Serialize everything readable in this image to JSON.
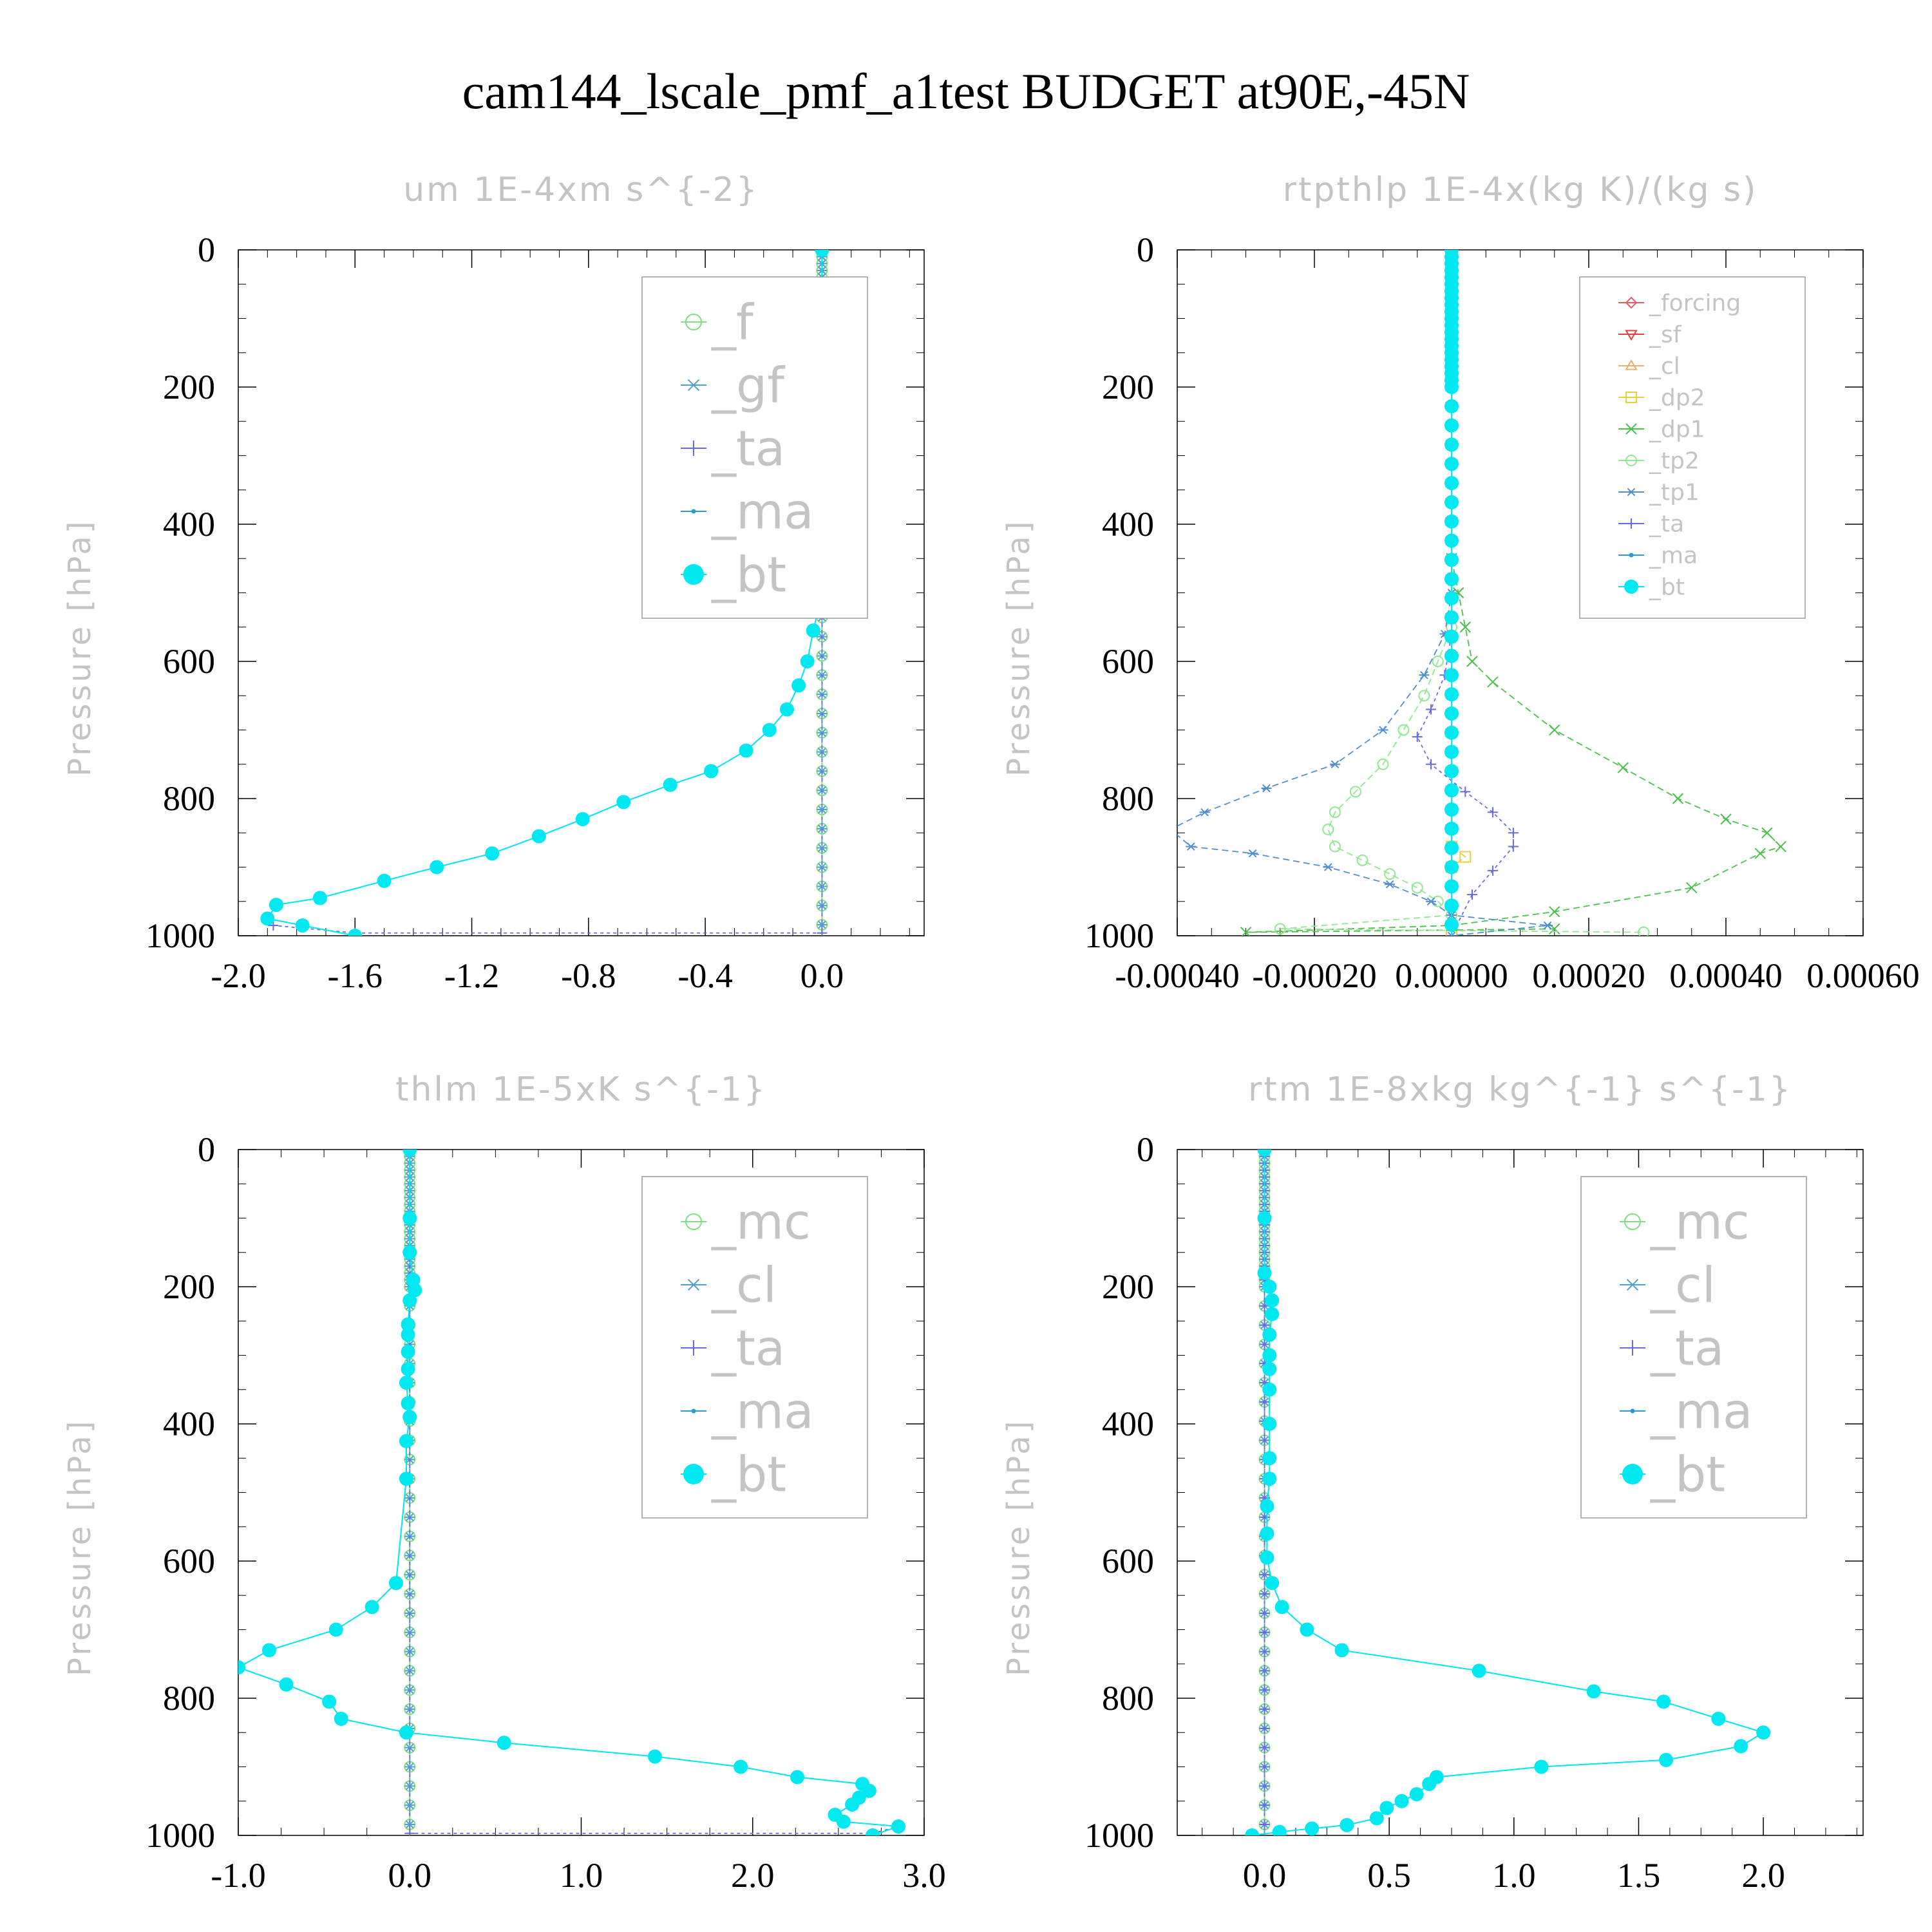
{
  "title": "cam144_lscale_pmf_a1test  BUDGET at90E,-45N",
  "chart_data": [
    {
      "type": "line",
      "title": "um  1E-4xm s^{-2}",
      "ylabel": "Pressure [hPa]",
      "xlim": [
        -2.0,
        0.35
      ],
      "ylim": [
        1000,
        0
      ],
      "xticks": [
        -2.0,
        -1.6,
        -1.2,
        -0.8,
        -0.4,
        0.0
      ],
      "xticklabels": [
        "-2.0",
        "-1.6",
        "-1.2",
        "-0.8",
        "-0.4",
        "0.0"
      ],
      "yticks": [
        0,
        200,
        400,
        600,
        800,
        1000
      ],
      "yticklabels": [
        "0",
        "200",
        "400",
        "600",
        "800",
        "1000"
      ],
      "legend_position": "top-right",
      "legend_size": "large",
      "series": [
        {
          "name": "_f",
          "color": "#7fe07f",
          "marker": "o",
          "dash": "",
          "x": [
            0.0,
            0.0
          ],
          "y": [
            0,
            1000
          ]
        },
        {
          "name": "_gf",
          "color": "#4f9fd0",
          "marker": "*",
          "dash": "10,6",
          "x": [
            0.0,
            0.0
          ],
          "y": [
            0,
            1000
          ]
        },
        {
          "name": "_ta",
          "color": "#6a6ae0",
          "marker": "+",
          "dash": "5,5",
          "x": [
            0.0,
            0.0,
            -1.6,
            -1.88
          ],
          "y": [
            0,
            996,
            996,
            985
          ]
        },
        {
          "name": "_ma",
          "color": "#2a9ad0",
          "marker": ".",
          "dash": "10,6",
          "x": [
            0.0,
            0.0,
            0.0,
            0.0,
            -0.01,
            -0.01,
            0.0,
            0.0,
            0.0,
            0.0,
            0.0,
            0.0,
            0.0,
            -0.01,
            -0.03,
            -0.05,
            -0.08,
            -0.12,
            -0.18,
            -0.26,
            -0.38,
            -0.52,
            -0.68,
            -0.82,
            -0.97,
            -1.13,
            -1.32,
            -1.5,
            -1.72,
            -1.87,
            -1.9,
            -1.78,
            -1.6
          ],
          "y": [
            0,
            100,
            150,
            200,
            220,
            240,
            265,
            290,
            315,
            340,
            380,
            420,
            480,
            520,
            555,
            600,
            635,
            670,
            700,
            730,
            760,
            780,
            805,
            830,
            855,
            880,
            900,
            920,
            945,
            955,
            975,
            985,
            1000
          ]
        },
        {
          "name": "_bt",
          "color": "#00e8f0",
          "marker": "bigdot",
          "dash": "",
          "x": [
            0.0,
            0.0,
            0.0,
            0.0,
            -0.01,
            -0.01,
            0.0,
            0.0,
            0.0,
            0.0,
            0.0,
            0.0,
            0.0,
            -0.01,
            -0.03,
            -0.05,
            -0.08,
            -0.12,
            -0.18,
            -0.26,
            -0.38,
            -0.52,
            -0.68,
            -0.82,
            -0.97,
            -1.13,
            -1.32,
            -1.5,
            -1.72,
            -1.87,
            -1.9,
            -1.78,
            -1.6
          ],
          "y": [
            0,
            100,
            150,
            200,
            220,
            240,
            265,
            290,
            315,
            340,
            380,
            420,
            480,
            520,
            555,
            600,
            635,
            670,
            700,
            730,
            760,
            780,
            805,
            830,
            855,
            880,
            900,
            920,
            945,
            955,
            975,
            985,
            1000
          ]
        }
      ]
    },
    {
      "type": "line",
      "title": "rtpthlp  1E-4x(kg K)/(kg s)",
      "ylabel": "Pressure [hPa]",
      "xlim": [
        -0.0004,
        0.0006
      ],
      "ylim": [
        1000,
        0
      ],
      "xticks": [
        -0.0004,
        -0.0002,
        0.0,
        0.0002,
        0.0004,
        0.0006
      ],
      "xticklabels": [
        "-0.00040",
        "-0.00020",
        "0.00000",
        "0.00020",
        "0.00040",
        "0.00060"
      ],
      "yticks": [
        0,
        200,
        400,
        600,
        800,
        1000
      ],
      "yticklabels": [
        "0",
        "200",
        "400",
        "600",
        "800",
        "1000"
      ],
      "legend_position": "top-right",
      "legend_size": "small",
      "series": [
        {
          "name": "_forcing",
          "color": "#e06060",
          "marker": "d",
          "dash": "",
          "x": [
            0.0,
            0.0
          ],
          "y": [
            0,
            1000
          ]
        },
        {
          "name": "_sf",
          "color": "#e04040",
          "marker": "v",
          "dash": "10,6",
          "x": [
            0.0,
            0.0
          ],
          "y": [
            0,
            1000
          ]
        },
        {
          "name": "_cl",
          "color": "#e8b070",
          "marker": "^",
          "dash": "5,5",
          "x": [
            0.0,
            0.0
          ],
          "y": [
            0,
            1000
          ]
        },
        {
          "name": "_dp2",
          "color": "#e8d040",
          "marker": "s",
          "dash": "10,6",
          "x": [
            0.0,
            0.0,
            2e-05,
            0.0,
            0.0
          ],
          "y": [
            0,
            870,
            885,
            900,
            1000
          ]
        },
        {
          "name": "_dp1",
          "color": "#4cc04c",
          "marker": "x",
          "dash": "10,6",
          "x": [
            0.0,
            0.0,
            1e-05,
            2e-05,
            3e-05,
            6e-05,
            0.00015,
            0.00025,
            0.00033,
            0.0004,
            0.00046,
            0.00048,
            0.00045,
            0.00035,
            0.00015,
            0.0,
            -0.0003,
            0.00015
          ],
          "y": [
            0,
            450,
            500,
            550,
            600,
            630,
            700,
            755,
            800,
            830,
            850,
            870,
            880,
            930,
            965,
            985,
            995,
            990
          ]
        },
        {
          "name": "_tp2",
          "color": "#90e890",
          "marker": "o",
          "dash": "10,6",
          "x": [
            0.0,
            0.0,
            -2e-05,
            -4e-05,
            -7e-05,
            -0.0001,
            -0.00014,
            -0.00017,
            -0.00018,
            -0.00017,
            -0.00013,
            -9e-05,
            -5e-05,
            -2e-05,
            0.0,
            -0.00025,
            0.00028
          ],
          "y": [
            0,
            550,
            600,
            650,
            700,
            750,
            790,
            820,
            845,
            870,
            890,
            910,
            930,
            950,
            970,
            990,
            995
          ]
        },
        {
          "name": "_tp1",
          "color": "#4f8fd0",
          "marker": "*",
          "dash": "10,6",
          "x": [
            0.0,
            0.0,
            -1e-05,
            -4e-05,
            -0.0001,
            -0.00017,
            -0.00027,
            -0.00036,
            -0.00041,
            -0.00038,
            -0.00029,
            -0.00018,
            -9e-05,
            -3e-05,
            0.0,
            0.00014,
            0.0
          ],
          "y": [
            0,
            500,
            560,
            620,
            700,
            750,
            785,
            820,
            845,
            870,
            880,
            900,
            925,
            950,
            970,
            985,
            1000
          ]
        },
        {
          "name": "_ta",
          "color": "#6a6ae0",
          "marker": "+",
          "dash": "5,5",
          "x": [
            0.0,
            0.0,
            -1e-05,
            -3e-05,
            -5e-05,
            -3e-05,
            2e-05,
            6e-05,
            9e-05,
            9e-05,
            6e-05,
            3e-05,
            0.0
          ],
          "y": [
            0,
            560,
            620,
            670,
            710,
            750,
            790,
            820,
            850,
            870,
            905,
            940,
            1000
          ]
        },
        {
          "name": "_ma",
          "color": "#2a9ad0",
          "marker": ".",
          "dash": "10,6",
          "x": [
            0.0,
            0.0
          ],
          "y": [
            0,
            1000
          ]
        },
        {
          "name": "_bt",
          "color": "#00e8f0",
          "marker": "bigdot",
          "dash": "",
          "x": [
            0.0,
            0.0
          ],
          "y": [
            0,
            1000
          ]
        }
      ]
    },
    {
      "type": "line",
      "title": "thlm  1E-5xK s^{-1}",
      "ylabel": "Pressure [hPa]",
      "xlim": [
        -1.0,
        3.0
      ],
      "ylim": [
        1000,
        0
      ],
      "xticks": [
        -1.0,
        0.0,
        1.0,
        2.0,
        3.0
      ],
      "xticklabels": [
        "-1.0",
        "0.0",
        "1.0",
        "2.0",
        "3.0"
      ],
      "yticks": [
        0,
        200,
        400,
        600,
        800,
        1000
      ],
      "yticklabels": [
        "0",
        "200",
        "400",
        "600",
        "800",
        "1000"
      ],
      "legend_position": "top-right",
      "legend_size": "large",
      "series": [
        {
          "name": "_mc",
          "color": "#7fe07f",
          "marker": "o",
          "dash": "",
          "x": [
            0.0,
            0.0
          ],
          "y": [
            0,
            1000
          ]
        },
        {
          "name": "_cl",
          "color": "#4f9fd0",
          "marker": "*",
          "dash": "10,6",
          "x": [
            0.0,
            0.0
          ],
          "y": [
            0,
            1000
          ]
        },
        {
          "name": "_ta",
          "color": "#6a6ae0",
          "marker": "+",
          "dash": "5,5",
          "x": [
            0.0,
            0.0,
            2.7,
            2.85
          ],
          "y": [
            0,
            997,
            997,
            987
          ]
        },
        {
          "name": "_ma",
          "color": "#2a9ad0",
          "marker": ".",
          "dash": "10,6",
          "x": [
            0.0,
            0.0,
            0.0,
            0.02,
            0.03,
            0.0,
            -0.01,
            -0.01,
            -0.01,
            -0.01,
            -0.02,
            -0.01,
            0.0,
            -0.02,
            -0.02,
            -0.08,
            -0.22,
            -0.43,
            -0.82,
            -1.0,
            -0.72,
            -0.47,
            -0.4,
            -0.02,
            0.55,
            1.43,
            1.93,
            2.26,
            2.64,
            2.68,
            2.62,
            2.58,
            2.48,
            2.53,
            2.85,
            2.7
          ],
          "y": [
            0,
            100,
            150,
            190,
            205,
            220,
            255,
            270,
            295,
            320,
            340,
            370,
            390,
            425,
            480,
            632,
            667,
            700,
            730,
            755,
            780,
            805,
            830,
            850,
            865,
            885,
            900,
            915,
            925,
            935,
            945,
            955,
            970,
            980,
            987,
            1000
          ]
        },
        {
          "name": "_bt",
          "color": "#00e8f0",
          "marker": "bigdot",
          "dash": "",
          "x": [
            0.0,
            0.0,
            0.0,
            0.02,
            0.03,
            0.0,
            -0.01,
            -0.01,
            -0.01,
            -0.01,
            -0.02,
            -0.01,
            0.0,
            -0.02,
            -0.02,
            -0.08,
            -0.22,
            -0.43,
            -0.82,
            -1.0,
            -0.72,
            -0.47,
            -0.4,
            -0.02,
            0.55,
            1.43,
            1.93,
            2.26,
            2.64,
            2.68,
            2.62,
            2.58,
            2.48,
            2.53,
            2.85,
            2.7
          ],
          "y": [
            0,
            100,
            150,
            190,
            205,
            220,
            255,
            270,
            295,
            320,
            340,
            370,
            390,
            425,
            480,
            632,
            667,
            700,
            730,
            755,
            780,
            805,
            830,
            850,
            865,
            885,
            900,
            915,
            925,
            935,
            945,
            955,
            970,
            980,
            987,
            1000
          ]
        }
      ]
    },
    {
      "type": "line",
      "title": "rtm  1E-8xkg kg^{-1} s^{-1}",
      "ylabel": "Pressure [hPa]",
      "xlim": [
        -0.35,
        2.4
      ],
      "ylim": [
        1000,
        0
      ],
      "xticks": [
        0.0,
        0.5,
        1.0,
        1.5,
        2.0
      ],
      "xticklabels": [
        "0.0",
        "0.5",
        "1.0",
        "1.5",
        "2.0"
      ],
      "yticks": [
        0,
        200,
        400,
        600,
        800,
        1000
      ],
      "yticklabels": [
        "0",
        "200",
        "400",
        "600",
        "800",
        "1000"
      ],
      "legend_position": "top-right",
      "legend_size": "large",
      "series": [
        {
          "name": "_mc",
          "color": "#7fe07f",
          "marker": "o",
          "dash": "",
          "x": [
            0.0,
            0.0
          ],
          "y": [
            0,
            1000
          ]
        },
        {
          "name": "_cl",
          "color": "#4f9fd0",
          "marker": "*",
          "dash": "10,6",
          "x": [
            0.0,
            0.0
          ],
          "y": [
            0,
            1000
          ]
        },
        {
          "name": "_ta",
          "color": "#6a6ae0",
          "marker": "+",
          "dash": "5,5",
          "x": [
            0.0,
            0.0
          ],
          "y": [
            0,
            1000
          ]
        },
        {
          "name": "_ma",
          "color": "#2a9ad0",
          "marker": ".",
          "dash": "10,6",
          "x": [
            0.0,
            0.0,
            0.0,
            0.02,
            0.03,
            0.03,
            0.02,
            0.02,
            0.02,
            0.02,
            0.02,
            0.02,
            0.02,
            0.01,
            0.01,
            0.01,
            0.03,
            0.07,
            0.17,
            0.31,
            0.86,
            1.32,
            1.6,
            1.82,
            2.0,
            1.91,
            1.61,
            1.11,
            0.69,
            0.66,
            0.61,
            0.55,
            0.49,
            0.45,
            0.33,
            0.19,
            0.06,
            -0.05
          ],
          "y": [
            0,
            100,
            180,
            200,
            220,
            240,
            270,
            300,
            320,
            350,
            400,
            450,
            480,
            520,
            560,
            595,
            632,
            667,
            700,
            730,
            760,
            790,
            805,
            830,
            850,
            870,
            890,
            900,
            915,
            925,
            940,
            950,
            960,
            975,
            985,
            990,
            995,
            1000
          ]
        },
        {
          "name": "_bt",
          "color": "#00e8f0",
          "marker": "bigdot",
          "dash": "",
          "x": [
            0.0,
            0.0,
            0.0,
            0.02,
            0.03,
            0.03,
            0.02,
            0.02,
            0.02,
            0.02,
            0.02,
            0.02,
            0.02,
            0.01,
            0.01,
            0.01,
            0.03,
            0.07,
            0.17,
            0.31,
            0.86,
            1.32,
            1.6,
            1.82,
            2.0,
            1.91,
            1.61,
            1.11,
            0.69,
            0.66,
            0.61,
            0.55,
            0.49,
            0.45,
            0.33,
            0.19,
            0.06,
            -0.05
          ],
          "y": [
            0,
            100,
            180,
            200,
            220,
            240,
            270,
            300,
            320,
            350,
            400,
            450,
            480,
            520,
            560,
            595,
            632,
            667,
            700,
            730,
            760,
            790,
            805,
            830,
            850,
            870,
            890,
            900,
            915,
            925,
            940,
            950,
            960,
            975,
            985,
            990,
            995,
            1000
          ]
        }
      ]
    }
  ]
}
